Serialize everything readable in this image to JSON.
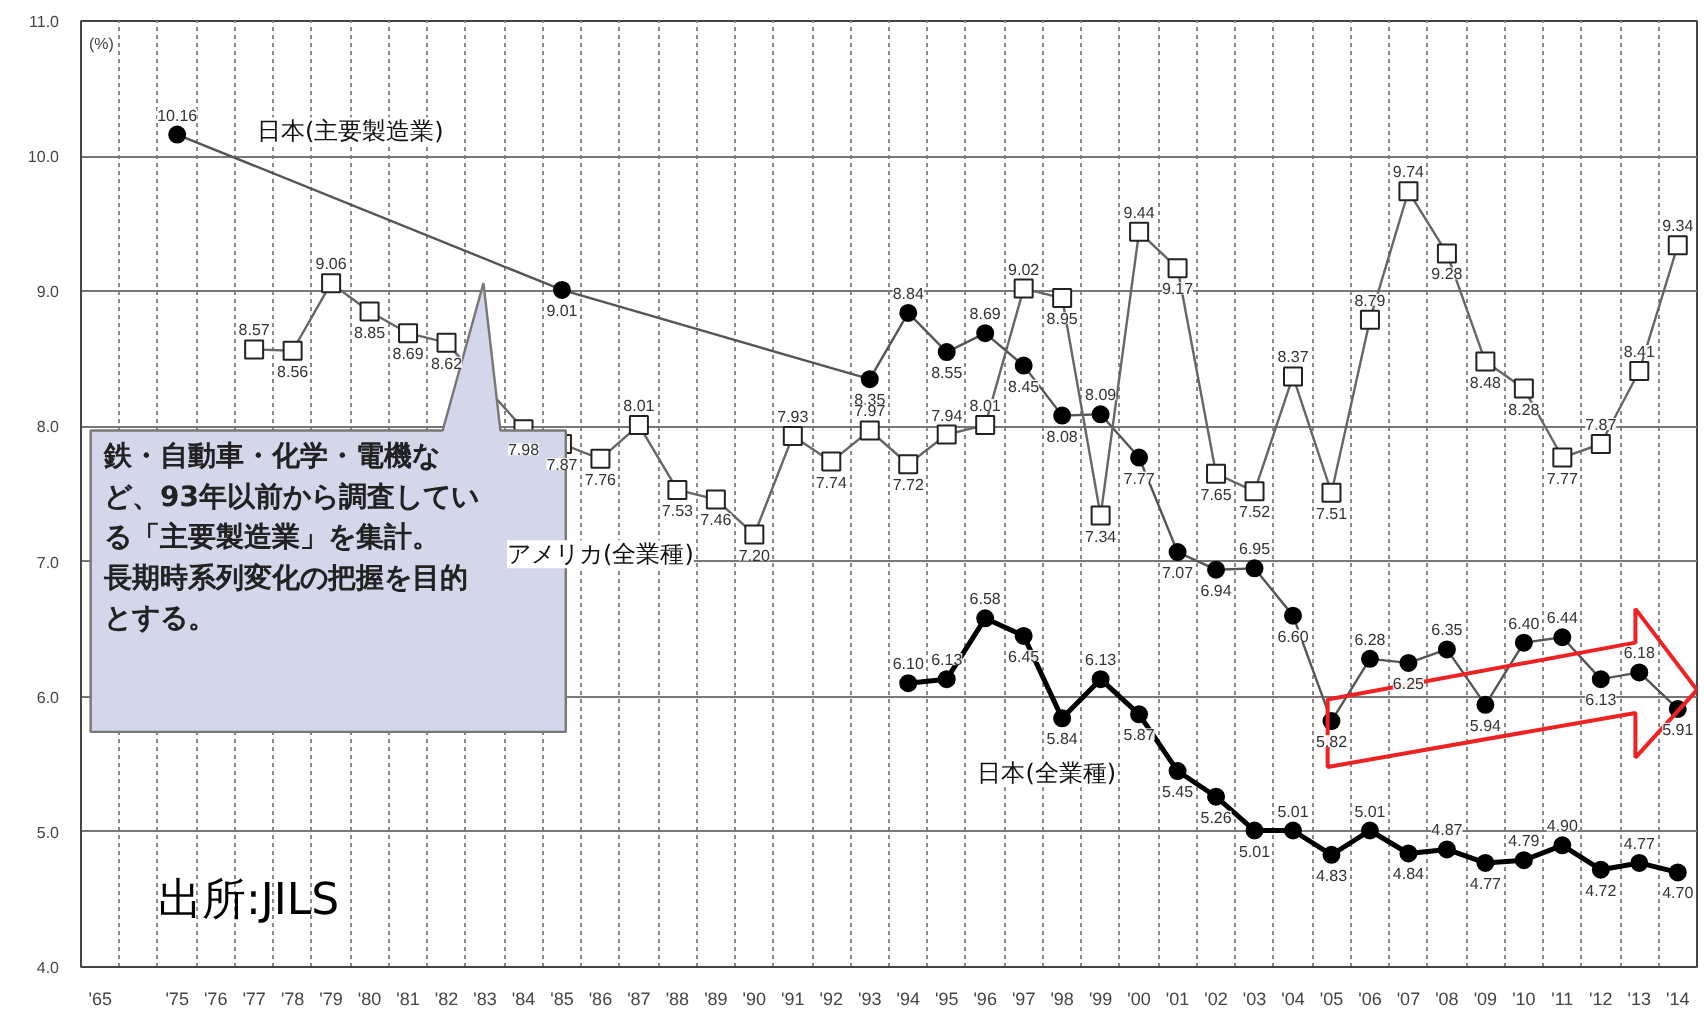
{
  "chart_data": {
    "type": "line",
    "ylabel": "(%)",
    "categories": [
      "'65",
      null,
      "'75",
      "'76",
      "'77",
      "'78",
      "'79",
      "'80",
      "'81",
      "'82",
      "'83",
      "'84",
      "'85",
      "'86",
      "'87",
      "'88",
      "'89",
      "'90",
      "'91",
      "'92",
      "'93",
      "'94",
      "'95",
      "'96",
      "'97",
      "'98",
      "'99",
      "'00",
      "'01",
      "'02",
      "'03",
      "'04",
      "'05",
      "'06",
      "'07",
      "'08",
      "'09",
      "'10",
      "'11",
      "'12",
      "'13",
      "'14"
    ],
    "series": [
      {
        "name": "日本(主要製造業)",
        "color": "#555555",
        "marker": "circle",
        "values": [
          null,
          null,
          10.16,
          null,
          null,
          null,
          null,
          null,
          null,
          null,
          null,
          null,
          9.01,
          null,
          null,
          null,
          null,
          null,
          null,
          null,
          8.35,
          8.84,
          8.55,
          8.69,
          8.45,
          8.08,
          8.09,
          7.77,
          7.07,
          6.94,
          6.95,
          6.6,
          5.82,
          6.28,
          6.25,
          6.35,
          5.94,
          6.4,
          6.44,
          6.13,
          6.18,
          5.91
        ],
        "value_labels": [
          null,
          null,
          "10.16",
          null,
          null,
          null,
          null,
          null,
          null,
          null,
          null,
          null,
          "9.01",
          null,
          null,
          null,
          null,
          null,
          null,
          null,
          "8.35",
          "8.84",
          "8.55",
          "8.69",
          "8.45",
          "8.08",
          "8.09",
          "7.77",
          "7.07",
          "6.94",
          "6.95",
          "6.60",
          "5.82",
          "6.28",
          "6.25",
          "6.35",
          "5.94",
          "6.40",
          "6.44",
          "6.13",
          "6.18",
          "5.91"
        ]
      },
      {
        "name": "アメリカ(全業種)",
        "color": "#666666",
        "marker": "square",
        "values": [
          null,
          null,
          null,
          null,
          8.57,
          8.56,
          9.06,
          8.85,
          8.69,
          8.62,
          null,
          7.98,
          7.87,
          7.76,
          8.01,
          7.53,
          7.46,
          7.2,
          7.93,
          7.74,
          7.97,
          7.72,
          7.94,
          8.01,
          9.02,
          8.95,
          7.34,
          9.44,
          9.17,
          7.65,
          7.52,
          8.37,
          7.51,
          8.79,
          9.74,
          9.28,
          8.48,
          8.28,
          7.77,
          7.87,
          8.41,
          9.34
        ],
        "value_labels": [
          null,
          null,
          null,
          null,
          "8.57",
          "8.56",
          "9.06",
          "8.85",
          "8.69",
          "8.62",
          null,
          "7.98",
          "7.87",
          "7.76",
          "8.01",
          "7.53",
          "7.46",
          "7.20",
          "7.93",
          "7.74",
          "7.97",
          "7.72",
          "7.94",
          "8.01",
          "9.02",
          "8.95",
          "7.34",
          "9.44",
          "9.17",
          "7.65",
          "7.52",
          "8.37",
          "7.51",
          "8.79",
          "9.74",
          "9.28",
          "8.48",
          "8.28",
          "7.77",
          "7.87",
          "8.41",
          "9.34"
        ]
      },
      {
        "name": "日本(全業種)",
        "color": "#000000",
        "marker": "circle",
        "values": [
          null,
          null,
          null,
          null,
          null,
          null,
          null,
          null,
          null,
          null,
          null,
          null,
          null,
          null,
          null,
          null,
          null,
          null,
          null,
          null,
          null,
          6.1,
          6.13,
          6.58,
          6.45,
          5.84,
          6.13,
          5.87,
          5.45,
          5.26,
          5.01,
          5.01,
          4.83,
          5.01,
          4.84,
          4.87,
          4.77,
          4.79,
          4.9,
          4.72,
          4.77,
          4.7
        ],
        "value_labels": [
          null,
          null,
          null,
          null,
          null,
          null,
          null,
          null,
          null,
          null,
          null,
          null,
          null,
          null,
          null,
          null,
          null,
          null,
          null,
          null,
          null,
          "6.10",
          "6.13",
          "6.58",
          "6.45",
          "5.84",
          "6.13",
          "5.87",
          "5.45",
          "5.26",
          "5.01",
          "5.01",
          "4.83",
          "5.01",
          "4.84",
          "4.87",
          "4.77",
          "4.79",
          "4.90",
          "4.72",
          "4.77",
          "4.70"
        ]
      }
    ],
    "ylim": [
      4,
      11
    ],
    "yticks": [
      {
        "value": 4,
        "label": "4.0"
      },
      {
        "value": 5,
        "label": "5.0"
      },
      {
        "value": 6,
        "label": "6.0"
      },
      {
        "value": 7,
        "label": "7.0"
      },
      {
        "value": 8,
        "label": "8.0"
      },
      {
        "value": 9,
        "label": "9.0"
      },
      {
        "value": 10,
        "label": "10.0"
      },
      {
        "value": 11,
        "label": "11.0"
      }
    ],
    "grid": true,
    "annotations": [
      "鉄・自動車・化学・電機など、93年以前から調査している「主要製造業」を集計。長期時系列変化の把握を目的とする。",
      "出所:JILS"
    ]
  }
}
